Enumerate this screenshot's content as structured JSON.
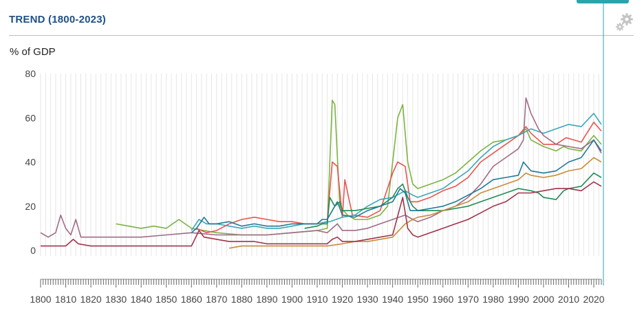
{
  "header": {
    "title": "TREND (1800-2023)",
    "settings_icon": "gear-icon"
  },
  "chart_data": {
    "type": "line",
    "title": "TREND (1800-2023)",
    "ylabel": "% of GDP",
    "xlabel": "",
    "xlim": [
      1800,
      2023
    ],
    "ylim": [
      0,
      80
    ],
    "y_ticks": [
      "0",
      "20",
      "40",
      "60",
      "80"
    ],
    "x_ticks": [
      "1800",
      "1810",
      "1820",
      "1830",
      "1840",
      "1850",
      "1860",
      "1870",
      "1880",
      "1890",
      "1900",
      "1910",
      "1920",
      "1930",
      "1940",
      "1950",
      "1960",
      "1970",
      "1980",
      "1990",
      "2000",
      "2010",
      "2020"
    ],
    "grid": "vertical",
    "legend": "none",
    "series": [
      {
        "color": "#7bb341",
        "points": [
          [
            1830,
            12
          ],
          [
            1835,
            11
          ],
          [
            1840,
            10
          ],
          [
            1845,
            11
          ],
          [
            1850,
            10
          ],
          [
            1855,
            14
          ],
          [
            1860,
            10
          ],
          [
            1870,
            8
          ],
          [
            1880,
            7
          ],
          [
            1890,
            7
          ],
          [
            1900,
            8
          ],
          [
            1910,
            9
          ],
          [
            1914,
            10
          ],
          [
            1916,
            68
          ],
          [
            1917,
            66
          ],
          [
            1919,
            20
          ],
          [
            1922,
            16
          ],
          [
            1925,
            14
          ],
          [
            1930,
            14
          ],
          [
            1935,
            16
          ],
          [
            1938,
            20
          ],
          [
            1940,
            40
          ],
          [
            1942,
            60
          ],
          [
            1944,
            66
          ],
          [
            1946,
            40
          ],
          [
            1948,
            30
          ],
          [
            1950,
            28
          ],
          [
            1955,
            30
          ],
          [
            1960,
            32
          ],
          [
            1965,
            35
          ],
          [
            1970,
            40
          ],
          [
            1975,
            45
          ],
          [
            1980,
            49
          ],
          [
            1985,
            50
          ],
          [
            1990,
            52
          ],
          [
            1993,
            55
          ],
          [
            1995,
            50
          ],
          [
            2000,
            47
          ],
          [
            2005,
            45
          ],
          [
            2008,
            47
          ],
          [
            2010,
            46
          ],
          [
            2015,
            45
          ],
          [
            2020,
            52
          ],
          [
            2023,
            48
          ]
        ]
      },
      {
        "color": "#e8544e",
        "points": [
          [
            1862,
            10
          ],
          [
            1866,
            8
          ],
          [
            1870,
            9
          ],
          [
            1875,
            12
          ],
          [
            1880,
            14
          ],
          [
            1885,
            15
          ],
          [
            1890,
            14
          ],
          [
            1895,
            13
          ],
          [
            1900,
            13
          ],
          [
            1905,
            12
          ],
          [
            1910,
            12
          ],
          [
            1914,
            13
          ],
          [
            1916,
            40
          ],
          [
            1918,
            38
          ],
          [
            1920,
            15
          ],
          [
            1921,
            32
          ],
          [
            1924,
            16
          ],
          [
            1930,
            15
          ],
          [
            1935,
            18
          ],
          [
            1940,
            35
          ],
          [
            1942,
            40
          ],
          [
            1945,
            38
          ],
          [
            1947,
            22
          ],
          [
            1950,
            22
          ],
          [
            1955,
            24
          ],
          [
            1960,
            27
          ],
          [
            1965,
            29
          ],
          [
            1970,
            33
          ],
          [
            1975,
            40
          ],
          [
            1980,
            44
          ],
          [
            1985,
            48
          ],
          [
            1990,
            52
          ],
          [
            1993,
            56
          ],
          [
            1995,
            53
          ],
          [
            2000,
            48
          ],
          [
            2005,
            48
          ],
          [
            2009,
            51
          ],
          [
            2012,
            50
          ],
          [
            2015,
            49
          ],
          [
            2020,
            58
          ],
          [
            2023,
            54
          ]
        ]
      },
      {
        "color": "#3aa6b9",
        "points": [
          [
            1860,
            9
          ],
          [
            1863,
            14
          ],
          [
            1866,
            12
          ],
          [
            1870,
            12
          ],
          [
            1875,
            11
          ],
          [
            1880,
            10
          ],
          [
            1885,
            11
          ],
          [
            1890,
            10
          ],
          [
            1895,
            10
          ],
          [
            1900,
            11
          ],
          [
            1905,
            12
          ],
          [
            1910,
            12
          ],
          [
            1915,
            13
          ],
          [
            1920,
            15
          ],
          [
            1925,
            16
          ],
          [
            1930,
            20
          ],
          [
            1935,
            23
          ],
          [
            1940,
            24
          ],
          [
            1945,
            27
          ],
          [
            1948,
            25
          ],
          [
            1950,
            24
          ],
          [
            1955,
            26
          ],
          [
            1960,
            28
          ],
          [
            1965,
            32
          ],
          [
            1970,
            36
          ],
          [
            1975,
            42
          ],
          [
            1980,
            47
          ],
          [
            1985,
            50
          ],
          [
            1990,
            52
          ],
          [
            1995,
            55
          ],
          [
            2000,
            53
          ],
          [
            2005,
            55
          ],
          [
            2010,
            57
          ],
          [
            2015,
            56
          ],
          [
            2020,
            62
          ],
          [
            2023,
            57
          ]
        ]
      },
      {
        "color": "#9e6b86",
        "points": [
          [
            1800,
            8
          ],
          [
            1803,
            6
          ],
          [
            1806,
            8
          ],
          [
            1808,
            16
          ],
          [
            1810,
            10
          ],
          [
            1812,
            7
          ],
          [
            1814,
            14
          ],
          [
            1816,
            6
          ],
          [
            1820,
            6
          ],
          [
            1830,
            6
          ],
          [
            1840,
            6
          ],
          [
            1850,
            7
          ],
          [
            1860,
            8
          ],
          [
            1870,
            7
          ],
          [
            1880,
            7
          ],
          [
            1890,
            7
          ],
          [
            1900,
            8
          ],
          [
            1910,
            9
          ],
          [
            1914,
            8
          ],
          [
            1916,
            10
          ],
          [
            1918,
            12
          ],
          [
            1920,
            9
          ],
          [
            1925,
            9
          ],
          [
            1930,
            10
          ],
          [
            1935,
            12
          ],
          [
            1940,
            14
          ],
          [
            1945,
            16
          ],
          [
            1948,
            14
          ],
          [
            1950,
            13
          ],
          [
            1955,
            15
          ],
          [
            1960,
            18
          ],
          [
            1965,
            20
          ],
          [
            1970,
            24
          ],
          [
            1975,
            30
          ],
          [
            1980,
            38
          ],
          [
            1985,
            42
          ],
          [
            1990,
            46
          ],
          [
            1992,
            50
          ],
          [
            1993,
            69
          ],
          [
            1995,
            62
          ],
          [
            1998,
            55
          ],
          [
            2000,
            52
          ],
          [
            2005,
            48
          ],
          [
            2010,
            47
          ],
          [
            2015,
            46
          ],
          [
            2020,
            50
          ],
          [
            2023,
            44
          ]
        ]
      },
      {
        "color": "#1e8c55",
        "points": [
          [
            1905,
            10
          ],
          [
            1910,
            11
          ],
          [
            1912,
            12
          ],
          [
            1914,
            12
          ],
          [
            1915,
            24
          ],
          [
            1917,
            20
          ],
          [
            1919,
            22
          ],
          [
            1920,
            18
          ],
          [
            1925,
            18
          ],
          [
            1930,
            19
          ],
          [
            1935,
            20
          ],
          [
            1940,
            24
          ],
          [
            1942,
            28
          ],
          [
            1944,
            30
          ],
          [
            1946,
            24
          ],
          [
            1948,
            20
          ],
          [
            1950,
            18
          ],
          [
            1955,
            18
          ],
          [
            1960,
            18
          ],
          [
            1965,
            19
          ],
          [
            1970,
            20
          ],
          [
            1975,
            22
          ],
          [
            1980,
            24
          ],
          [
            1985,
            26
          ],
          [
            1990,
            28
          ],
          [
            1995,
            27
          ],
          [
            1998,
            26
          ],
          [
            2000,
            24
          ],
          [
            2005,
            23
          ],
          [
            2008,
            27
          ],
          [
            2010,
            28
          ],
          [
            2015,
            29
          ],
          [
            2020,
            35
          ],
          [
            2023,
            33
          ]
        ]
      },
      {
        "color": "#c88b3a",
        "points": [
          [
            1875,
            1
          ],
          [
            1880,
            2
          ],
          [
            1890,
            2
          ],
          [
            1900,
            2
          ],
          [
            1910,
            2
          ],
          [
            1914,
            2
          ],
          [
            1920,
            3
          ],
          [
            1925,
            4
          ],
          [
            1930,
            4
          ],
          [
            1935,
            5
          ],
          [
            1940,
            6
          ],
          [
            1945,
            12
          ],
          [
            1948,
            14
          ],
          [
            1950,
            15
          ],
          [
            1955,
            16
          ],
          [
            1960,
            18
          ],
          [
            1965,
            20
          ],
          [
            1970,
            22
          ],
          [
            1975,
            26
          ],
          [
            1980,
            28
          ],
          [
            1985,
            30
          ],
          [
            1990,
            32
          ],
          [
            1993,
            35
          ],
          [
            1995,
            34
          ],
          [
            2000,
            33
          ],
          [
            2005,
            34
          ],
          [
            2010,
            36
          ],
          [
            2015,
            37
          ],
          [
            2020,
            42
          ],
          [
            2023,
            40
          ]
        ]
      },
      {
        "color": "#1f7898",
        "points": [
          [
            1860,
            8
          ],
          [
            1862,
            10
          ],
          [
            1865,
            15
          ],
          [
            1867,
            12
          ],
          [
            1870,
            12
          ],
          [
            1875,
            13
          ],
          [
            1880,
            11
          ],
          [
            1885,
            12
          ],
          [
            1890,
            11
          ],
          [
            1895,
            11
          ],
          [
            1900,
            12
          ],
          [
            1905,
            12
          ],
          [
            1910,
            12
          ],
          [
            1912,
            14
          ],
          [
            1914,
            14
          ],
          [
            1916,
            18
          ],
          [
            1918,
            22
          ],
          [
            1920,
            16
          ],
          [
            1925,
            15
          ],
          [
            1930,
            18
          ],
          [
            1935,
            20
          ],
          [
            1940,
            22
          ],
          [
            1943,
            28
          ],
          [
            1945,
            26
          ],
          [
            1947,
            18
          ],
          [
            1950,
            18
          ],
          [
            1955,
            19
          ],
          [
            1960,
            20
          ],
          [
            1965,
            22
          ],
          [
            1970,
            25
          ],
          [
            1975,
            28
          ],
          [
            1980,
            32
          ],
          [
            1985,
            33
          ],
          [
            1990,
            34
          ],
          [
            1992,
            40
          ],
          [
            1995,
            36
          ],
          [
            2000,
            35
          ],
          [
            2005,
            36
          ],
          [
            2010,
            40
          ],
          [
            2015,
            42
          ],
          [
            2020,
            50
          ],
          [
            2023,
            45
          ]
        ]
      },
      {
        "color": "#a0344a",
        "points": [
          [
            1800,
            2
          ],
          [
            1810,
            2
          ],
          [
            1813,
            5
          ],
          [
            1815,
            3
          ],
          [
            1820,
            2
          ],
          [
            1830,
            2
          ],
          [
            1840,
            2
          ],
          [
            1850,
            2
          ],
          [
            1860,
            2
          ],
          [
            1863,
            9
          ],
          [
            1865,
            6
          ],
          [
            1870,
            5
          ],
          [
            1875,
            4
          ],
          [
            1880,
            4
          ],
          [
            1885,
            4
          ],
          [
            1890,
            3
          ],
          [
            1895,
            3
          ],
          [
            1900,
            3
          ],
          [
            1905,
            3
          ],
          [
            1910,
            3
          ],
          [
            1914,
            3
          ],
          [
            1916,
            5
          ],
          [
            1918,
            6
          ],
          [
            1920,
            4
          ],
          [
            1925,
            4
          ],
          [
            1930,
            5
          ],
          [
            1935,
            6
          ],
          [
            1940,
            7
          ],
          [
            1944,
            24
          ],
          [
            1946,
            10
          ],
          [
            1948,
            7
          ],
          [
            1950,
            6
          ],
          [
            1955,
            8
          ],
          [
            1960,
            10
          ],
          [
            1965,
            12
          ],
          [
            1970,
            14
          ],
          [
            1975,
            17
          ],
          [
            1980,
            20
          ],
          [
            1985,
            22
          ],
          [
            1990,
            26
          ],
          [
            1995,
            26
          ],
          [
            2000,
            27
          ],
          [
            2005,
            28
          ],
          [
            2010,
            28
          ],
          [
            2015,
            27
          ],
          [
            2020,
            31
          ],
          [
            2023,
            29
          ]
        ]
      }
    ]
  }
}
